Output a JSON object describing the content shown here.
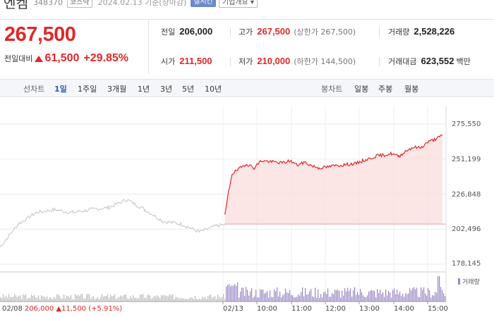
{
  "header": {
    "name": "엔켐",
    "code": "348370",
    "market": "코스닥",
    "date": "2024.02.13 기준(장마감)",
    "realtime": "실시간",
    "company": "기업개요 ▾"
  },
  "quote": {
    "price": "267,500",
    "change_label": "전일대비",
    "change_amount": "61,500",
    "change_percent": "+29.85%"
  },
  "stats": {
    "prev_close": {
      "label": "전일",
      "value": "206,000"
    },
    "high": {
      "label": "고가",
      "value": "267,500",
      "sub": "(상한가 267,500)"
    },
    "volume": {
      "label": "거래량",
      "value": "2,528,226"
    },
    "open": {
      "label": "시가",
      "value": "211,500"
    },
    "low": {
      "label": "저가",
      "value": "210,000",
      "sub": "(하한가 144,500)"
    },
    "amount": {
      "label": "거래대금",
      "value": "623,552",
      "unit": "백만"
    }
  },
  "tabs": {
    "line_label": "선차트",
    "line": [
      "1일",
      "1주일",
      "3개월",
      "1년",
      "3년",
      "5년",
      "10년"
    ],
    "active": "1일",
    "candle_label": "봉차트",
    "candle": [
      "일봉",
      "주봉",
      "월봉"
    ]
  },
  "colors": {
    "up": "#e12828",
    "accent": "#2c5dba",
    "volume": "#9a86c4"
  },
  "chart_data": {
    "type": "line",
    "yticks": [
      "275,550",
      "251,199",
      "226,848",
      "202,496",
      "178,145"
    ],
    "ylim": [
      178145,
      275550
    ],
    "xlabels": [
      "02/08",
      "02/13",
      "10:00",
      "11:00",
      "12:00",
      "13:00",
      "14:00",
      "15:00"
    ],
    "baseline": 206000,
    "volume_label": "거래량",
    "prev_day_summary": {
      "date": "02/08",
      "text": "206,000 ▲11,500 (+5.91%)"
    },
    "series": [
      {
        "segment": "previous_session",
        "x": [
          0,
          5,
          10,
          15,
          20,
          25,
          30,
          35,
          40,
          45,
          50,
          55,
          60,
          62
        ],
        "y": [
          190000,
          206000,
          214000,
          216000,
          214000,
          216000,
          217500,
          223000,
          216000,
          208000,
          206000,
          200500,
          205000,
          205500
        ]
      },
      {
        "segment": "today",
        "x": [
          62,
          63,
          64,
          66,
          68,
          70,
          72,
          74,
          76,
          78,
          80,
          82,
          84,
          86,
          88,
          90,
          92,
          94,
          96,
          98,
          100,
          102,
          104,
          106,
          108,
          110,
          112,
          114,
          116,
          118,
          120,
          122
        ],
        "y": [
          211500,
          228000,
          241000,
          244500,
          248000,
          245000,
          250000,
          249500,
          249000,
          248500,
          250000,
          247000,
          249000,
          246500,
          245000,
          245500,
          246500,
          247000,
          247500,
          248000,
          250000,
          251500,
          253500,
          254000,
          255000,
          253000,
          257000,
          259500,
          259000,
          263000,
          265000,
          267500
        ]
      }
    ]
  }
}
